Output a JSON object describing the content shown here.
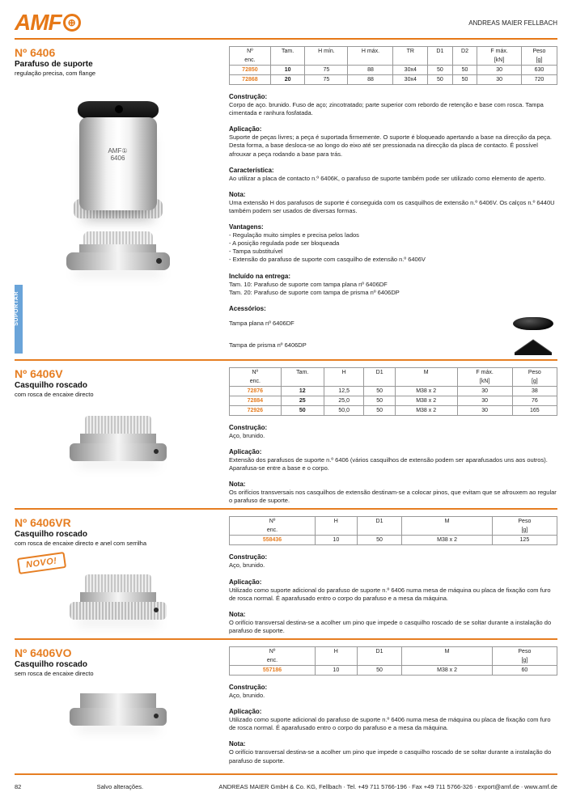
{
  "header": {
    "brand": "AMF",
    "tagline": "ANDREAS MAIER FELLBACH"
  },
  "sidetab": "SUPORTAR",
  "section1": {
    "code": "Nº 6406",
    "title": "Parafuso de suporte",
    "sub": "regulação precisa, com flange",
    "table": {
      "cols2": [
        "Nº\nenc.",
        "Tam.",
        "H mín.",
        "H máx.",
        "TR",
        "D1",
        "D2",
        "F máx.\n[kN]",
        "Peso\n[g]"
      ],
      "rows": [
        [
          "72850",
          "10",
          "75",
          "88",
          "30x4",
          "50",
          "50",
          "30",
          "630"
        ],
        [
          "72868",
          "20",
          "75",
          "88",
          "30x4",
          "50",
          "50",
          "30",
          "720"
        ]
      ]
    },
    "h_const": "Construção:",
    "t_const": "Corpo de aço. brunido. Fuso de aço; zincotratado; parte superior com rebordo de retenção e base com rosca. Tampa cimentada e ranhura fosfatada.",
    "h_app": "Aplicação:",
    "t_app": "Suporte de peças livres; a peça é suportada firmemente. O suporte é bloqueado apertando a base na direcção da peça. Desta forma, a base desloca-se ao longo do eixo até ser pressionada na direcção da placa de contacto. É possível afrouxar a peça rodando a base para trás.",
    "h_feat": "Característica:",
    "t_feat": "Ao utilizar a placa de contacto n.º 6406K, o parafuso de suporte também pode ser utilizado como elemento de aperto.",
    "h_note": "Nota:",
    "t_note": "Uma extensão H dos parafusos de suporte é conseguida com os casquilhos de extensão n.º 6406V. Os calços n.º 6440U também podem ser usados de diversas formas.",
    "h_adv": "Vantagens:",
    "t_adv": "- Regulação muito simples e precisa pelos lados\n- A posição regulada pode ser bloqueada\n- Tampa substituível\n- Extensão do parafuso de suporte com casquilho de extensão n.º 6406V",
    "h_del": "Incluído na entrega:",
    "t_del": "Tam. 10: Parafuso de suporte com tampa plana nº 6406DF\nTam. 20: Parafuso de suporte com tampa de prisma nº 6406DP",
    "h_acc": "Acessórios:",
    "acc1": "Tampa plana nº 6406DF",
    "acc2": "Tampa de prisma nº 6406DP"
  },
  "section2": {
    "code": "Nº 6406V",
    "title": "Casquilho roscado",
    "sub": "com rosca de encaixe directo",
    "table": {
      "cols2": [
        "Nº\nenc.",
        "Tam.",
        "H",
        "D1",
        "M",
        "F máx.\n[kN]",
        "Peso\n[g]"
      ],
      "rows": [
        [
          "72876",
          "12",
          "12,5",
          "50",
          "M38 x 2",
          "30",
          "38"
        ],
        [
          "72884",
          "25",
          "25,0",
          "50",
          "M38 x 2",
          "30",
          "76"
        ],
        [
          "72926",
          "50",
          "50,0",
          "50",
          "M38 x 2",
          "30",
          "165"
        ]
      ]
    },
    "h_const": "Construção:",
    "t_const": "Aço, brunido.",
    "h_app": "Aplicação:",
    "t_app": "Extensão dos parafusos de suporte n.º 6406 (vários casquilhos de extensão podem ser aparafusados uns aos outros). Aparafusa-se entre a base e o corpo.",
    "h_note": "Nota:",
    "t_note": "Os orifícios transversais nos casquilhos de extensão destinam-se a colocar pinos, que evitam que se afrouxem ao regular o parafuso de suporte."
  },
  "section3": {
    "code": "Nº 6406VR",
    "title": "Casquilho roscado",
    "sub": "com rosca de encaixe directo e anel com serrilha",
    "novo": "NOVO!",
    "table": {
      "cols2": [
        "Nº\nenc.",
        "H",
        "D1",
        "M",
        "Peso\n[g]"
      ],
      "rows": [
        [
          "558436",
          "10",
          "50",
          "M38 x 2",
          "125"
        ]
      ]
    },
    "h_const": "Construção:",
    "t_const": "Aço, brunido.",
    "h_app": "Aplicação:",
    "t_app": "Utilizado como suporte adicional do parafuso de suporte n.º 6406 numa mesa de máquina ou placa de fixação com furo de rosca normal. É aparafusado entro o corpo do parafuso e a mesa da máquina.",
    "h_note": "Nota:",
    "t_note": "O orifício transversal destina-se a acolher um pino que impede o casquilho roscado de se soltar durante a instalação do parafuso de suporte."
  },
  "section4": {
    "code": "Nº 6406VO",
    "title": "Casquilho roscado",
    "sub": "sem rosca de encaixe directo",
    "table": {
      "cols2": [
        "Nº\nenc.",
        "H",
        "D1",
        "M",
        "Peso\n[g]"
      ],
      "rows": [
        [
          "557186",
          "10",
          "50",
          "M38 x 2",
          "60"
        ]
      ]
    },
    "h_const": "Construção:",
    "t_const": "Aço, brunido.",
    "h_app": "Aplicação:",
    "t_app": "Utilizado como suporte adicional do parafuso de suporte n.º 6406 numa mesa de máquina ou placa de fixação com furo de rosca normal. É aparafusado entro o corpo do parafuso e a mesa da máquina.",
    "h_note": "Nota:",
    "t_note": "O orifício transversal destina-se a acolher um pino que impede o casquilho roscado de se soltar durante a instalação do parafuso de suporte."
  },
  "footer": {
    "page": "82",
    "note": "Salvo alterações.",
    "company": "ANDREAS MAIER GmbH & Co. KG, Fellbach ∙ Tel. +49 711 5766-196 ∙ Fax +49 711 5766-326 ∙ export@amf.de ∙ www.amf.de"
  }
}
